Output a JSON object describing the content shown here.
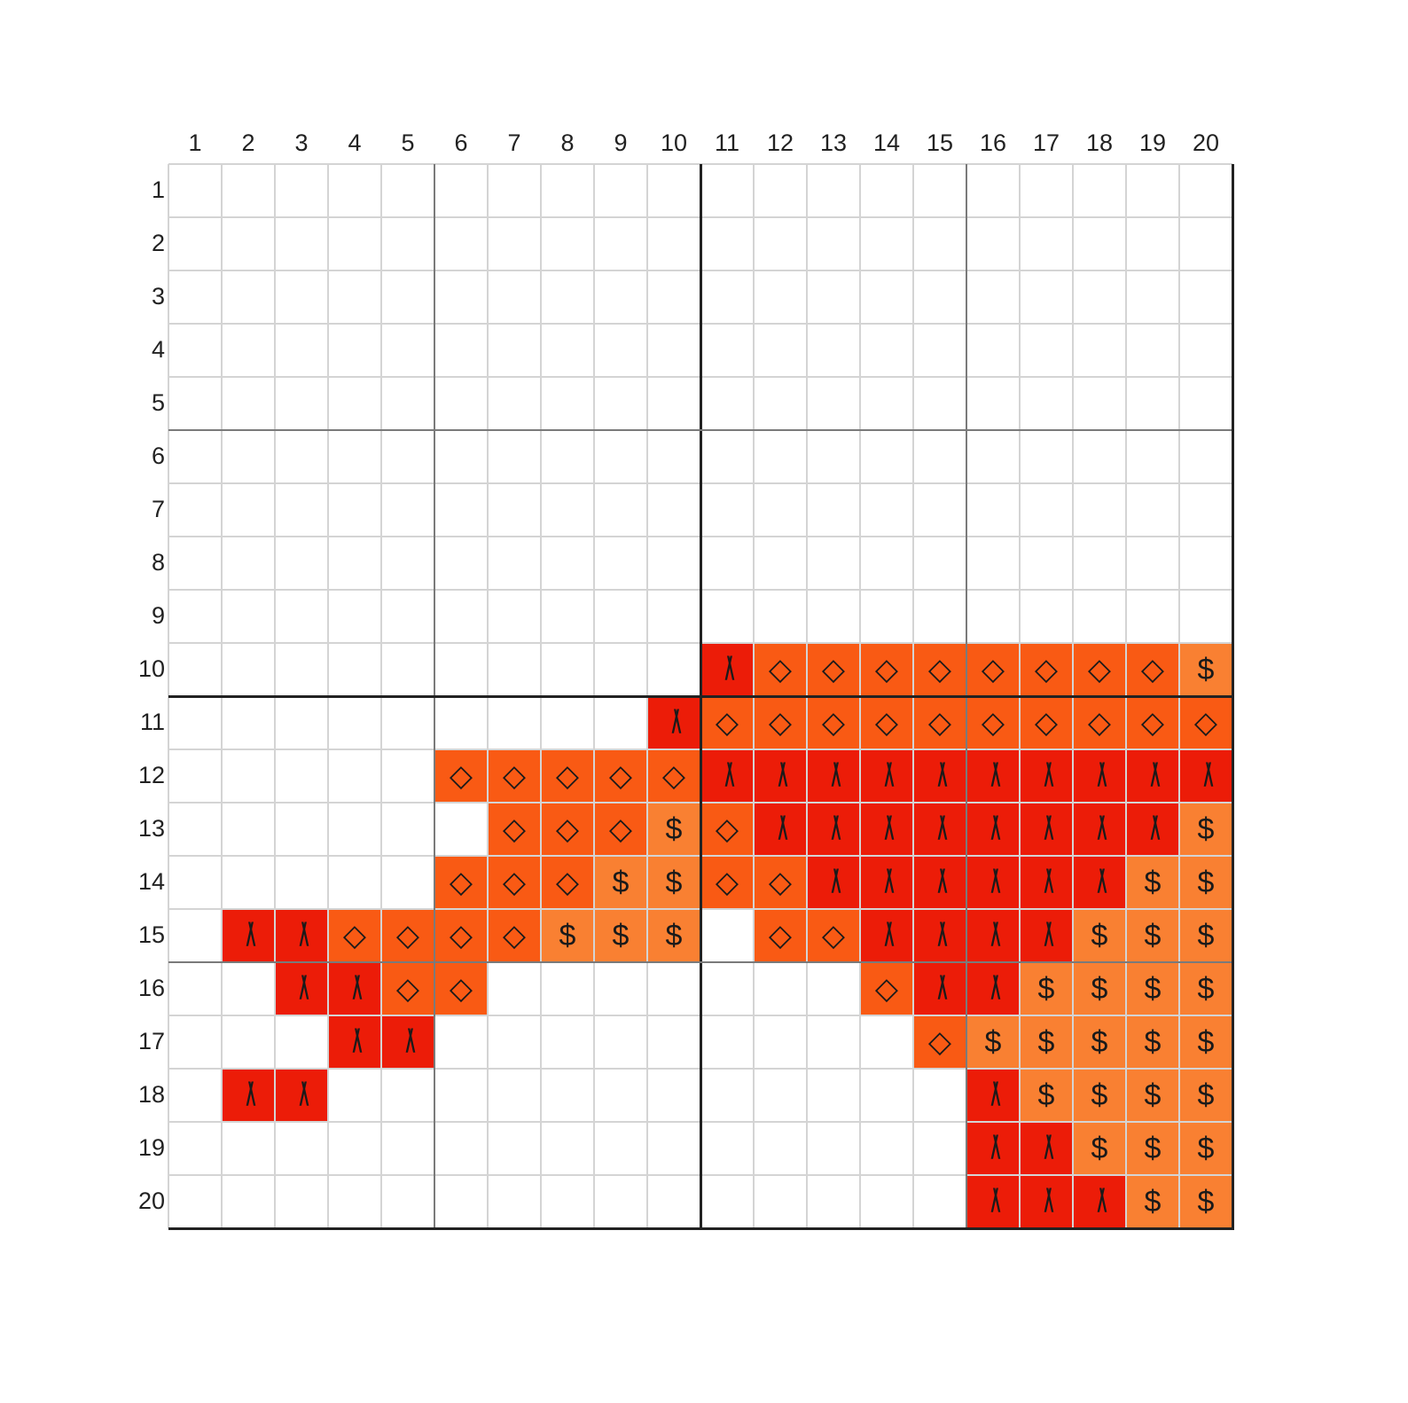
{
  "chart_data": {
    "type": "heatmap",
    "columns": [
      "1",
      "2",
      "3",
      "4",
      "5",
      "6",
      "7",
      "8",
      "9",
      "10",
      "11",
      "12",
      "13",
      "14",
      "15",
      "16",
      "17",
      "18",
      "19",
      "20"
    ],
    "rows": [
      "1",
      "2",
      "3",
      "4",
      "5",
      "6",
      "7",
      "8",
      "9",
      "10",
      "11",
      "12",
      "13",
      "14",
      "15",
      "16",
      "17",
      "18",
      "19",
      "20"
    ],
    "symbols": {
      "A": {
        "glyph": "/\\",
        "color": "#ec1c08"
      },
      "D": {
        "glyph": "◇",
        "color": "#f95a14"
      },
      "S": {
        "glyph": "$",
        "color": "#f98032"
      }
    },
    "grid": [
      "....................",
      "....................",
      "....................",
      "....................",
      "....................",
      "....................",
      "....................",
      "....................",
      "....................",
      "..........ADDDDDDDDS",
      ".........ADDDDDDDDDD",
      ".....DDDDDAAAAAAAAAA",
      "......DDDSDAAAAAAAAS",
      ".....DDDSSDDAAAAAASS",
      ".AADDDDSSS.DDAAAASSS",
      "..AADD.......DAASSSS",
      "...AA.........DSSSSS",
      ".AA............ASSSS",
      "...............AASSS",
      "...............AAASS"
    ]
  }
}
